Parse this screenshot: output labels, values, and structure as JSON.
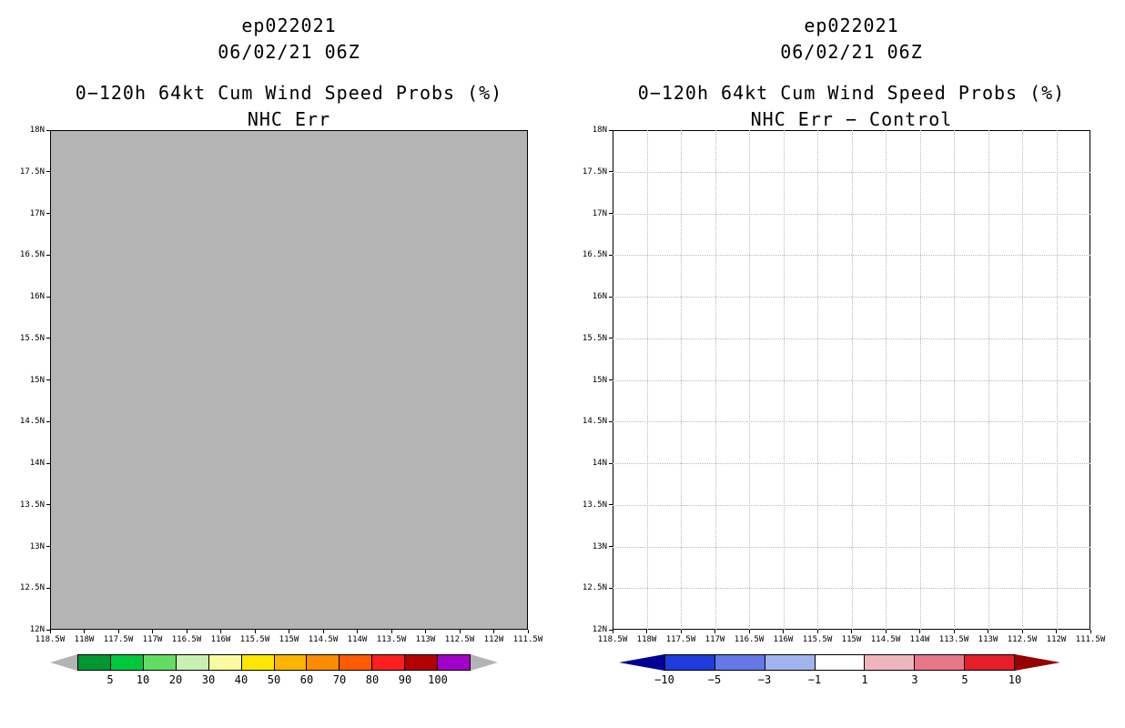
{
  "page": {
    "background": "#ffffff"
  },
  "panels": [
    {
      "title1": "ep022021",
      "title2": "06/02/21 06Z",
      "subtitle1": "0−120h 64kt Cum Wind Speed Probs (%)",
      "subtitle2": "NHC Err",
      "map": {
        "fill": "#b4b4b4",
        "border": "#000000",
        "grid_visible": false,
        "grid_color": "#b9b9b9"
      },
      "lat_ticks": [
        "18N",
        "17.5N",
        "17N",
        "16.5N",
        "16N",
        "15.5N",
        "15N",
        "14.5N",
        "14N",
        "13.5N",
        "13N",
        "12.5N",
        "12N"
      ],
      "lon_ticks": [
        "118.5W",
        "118W",
        "117.5W",
        "117W",
        "116.5W",
        "116W",
        "115.5W",
        "115W",
        "114.5W",
        "114W",
        "113.5W",
        "113W",
        "112.5W",
        "112W",
        "111.5W"
      ],
      "colorbar": {
        "arrow_left_color": "#b4b4b4",
        "arrow_right_color": "#b4b4b4",
        "box_colors": [
          "#009632",
          "#00c83c",
          "#64dc64",
          "#c8f0b4",
          "#fafaa0",
          "#ffe600",
          "#ffb400",
          "#ff8c00",
          "#ff5a00",
          "#ff1e1e",
          "#b40000",
          "#a000c8"
        ],
        "labels": [
          "5",
          "10",
          "20",
          "30",
          "40",
          "50",
          "60",
          "70",
          "80",
          "90",
          "100"
        ],
        "label_mode": "internal"
      }
    },
    {
      "title1": "ep022021",
      "title2": "06/02/21 06Z",
      "subtitle1": "0−120h 64kt Cum Wind Speed Probs (%)",
      "subtitle2": "NHC Err − Control",
      "map": {
        "fill": "#ffffff",
        "border": "#000000",
        "grid_visible": true,
        "grid_color": "#b9b9b9"
      },
      "lat_ticks": [
        "18N",
        "17.5N",
        "17N",
        "16.5N",
        "16N",
        "15.5N",
        "15N",
        "14.5N",
        "14N",
        "13.5N",
        "13N",
        "12.5N",
        "12N"
      ],
      "lon_ticks": [
        "118.5W",
        "118W",
        "117.5W",
        "117W",
        "116.5W",
        "116W",
        "115.5W",
        "115W",
        "114.5W",
        "114W",
        "113.5W",
        "113W",
        "112.5W",
        "112W",
        "111.5W"
      ],
      "colorbar": {
        "arrow_left_color": "#000096",
        "arrow_right_color": "#960000",
        "box_colors": [
          "#1e3cdc",
          "#6478e6",
          "#a0b4f0",
          "#ffffff",
          "#f0b4be",
          "#e67887",
          "#e61e28"
        ],
        "labels": [
          "−10",
          "−5",
          "−3",
          "−1",
          "1",
          "3",
          "5",
          "10"
        ],
        "label_mode": "all"
      }
    }
  ],
  "chart_data": [
    {
      "type": "heatmap",
      "title": "ep022021 06/02/21 06Z — 0−120h 64kt Cum Wind Speed Probs (%) — NHC Err",
      "x_ticks": [
        "118.5W",
        "118W",
        "117.5W",
        "117W",
        "116.5W",
        "116W",
        "115.5W",
        "115W",
        "114.5W",
        "114W",
        "113.5W",
        "113W",
        "112.5W",
        "112W",
        "111.5W"
      ],
      "y_ticks": [
        "18N",
        "17.5N",
        "17N",
        "16.5N",
        "16N",
        "15.5N",
        "15N",
        "14.5N",
        "14N",
        "13.5N",
        "13N",
        "12.5N",
        "12N"
      ],
      "xlim": [
        "118.5W",
        "111.5W"
      ],
      "ylim": [
        "12N",
        "18N"
      ],
      "colorbar_levels": [
        5,
        10,
        20,
        30,
        40,
        50,
        60,
        70,
        80,
        90,
        100
      ],
      "grid": false,
      "legend_position": "bottom colorbar",
      "values": "uniform field — entire lat/lon domain shaded gray (below lowest 5% contour); no colored probability contours plotted"
    },
    {
      "type": "heatmap",
      "title": "ep022021 06/02/21 06Z — 0−120h 64kt Cum Wind Speed Probs (%) — NHC Err − Control",
      "x_ticks": [
        "118.5W",
        "118W",
        "117.5W",
        "117W",
        "116.5W",
        "116W",
        "115.5W",
        "115W",
        "114.5W",
        "114W",
        "113.5W",
        "113W",
        "112.5W",
        "112W",
        "111.5W"
      ],
      "y_ticks": [
        "18N",
        "17.5N",
        "17N",
        "16.5N",
        "16N",
        "15.5N",
        "15N",
        "14.5N",
        "14N",
        "13.5N",
        "13N",
        "12.5N",
        "12N"
      ],
      "xlim": [
        "118.5W",
        "111.5W"
      ],
      "ylim": [
        "12N",
        "18N"
      ],
      "colorbar_levels": [
        -10,
        -5,
        -3,
        -1,
        1,
        3,
        5,
        10
      ],
      "grid": true,
      "legend_position": "bottom colorbar",
      "values": "empty difference field — blank white map with dotted 0.5° graticule; no shaded differences plotted"
    }
  ]
}
